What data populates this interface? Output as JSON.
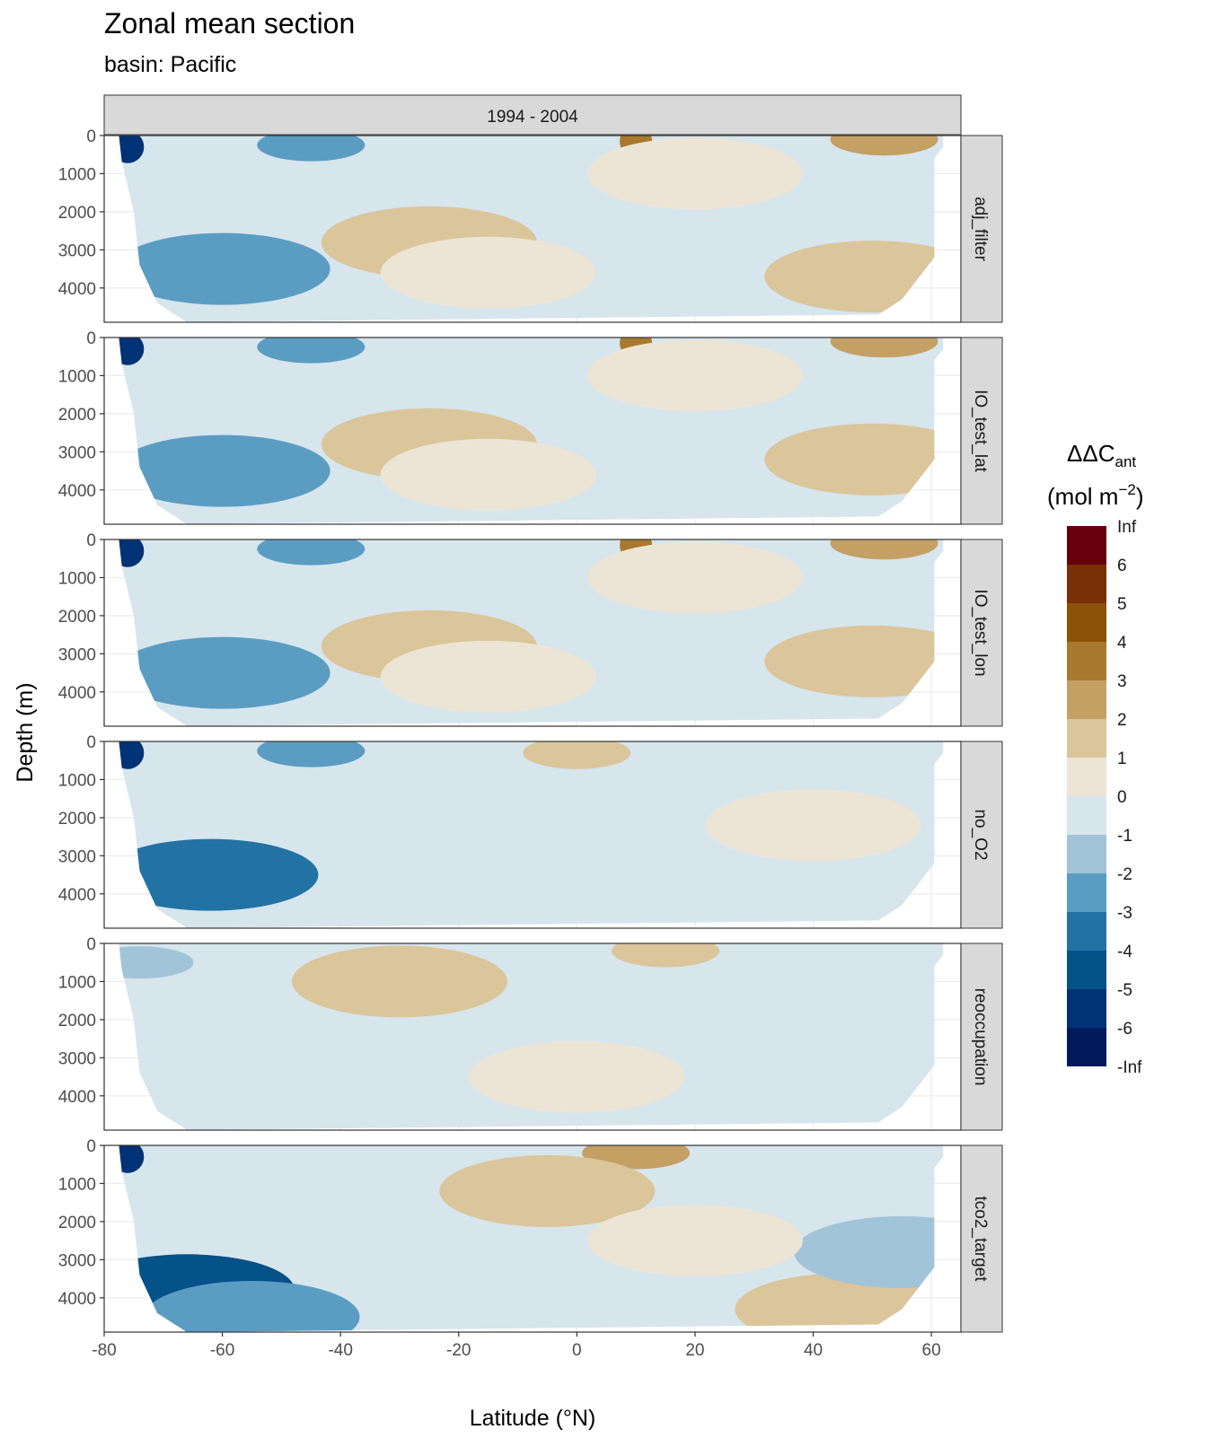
{
  "chart_data": {
    "type": "heatmap",
    "title": "Zonal mean section",
    "subtitle": "basin: Pacific",
    "xlabel": "Latitude (°N)",
    "ylabel": "Depth (m)",
    "xlim": [
      -80,
      65
    ],
    "ylim": [
      0,
      4900
    ],
    "y_reversed": true,
    "x_ticks": [
      -80,
      -60,
      -40,
      -20,
      0,
      20,
      40,
      60
    ],
    "y_ticks": [
      0,
      1000,
      2000,
      3000,
      4000
    ],
    "column_strip": "1994 - 2004",
    "legend": {
      "title": "ΔΔC",
      "title_subscript": "ant",
      "unit_prefix": "(mol m",
      "unit_superscript": "−2",
      "unit_suffix": ")",
      "placement": "right",
      "breaks": [
        "Inf",
        "6",
        "5",
        "4",
        "3",
        "2",
        "1",
        "0",
        "-1",
        "-2",
        "-3",
        "-4",
        "-5",
        "-6",
        "-Inf"
      ],
      "colors": [
        "#67000d",
        "#7a3006",
        "#8c5208",
        "#a8792e",
        "#c4a065",
        "#dbc59b",
        "#ece5d6",
        "#d7e5ed",
        "#a1c4d8",
        "#5b9dc2",
        "#2372a4",
        "#055189",
        "#003276",
        "#001a5a"
      ]
    },
    "panels": [
      {
        "label": "adj_filter",
        "south_max": 4900,
        "north_max": 4700,
        "features": [
          {
            "x": -76,
            "y": 300,
            "value": -5.5
          },
          {
            "x": -45,
            "y": 250,
            "value": -2.5
          },
          {
            "x": -60,
            "y": 3500,
            "value": -2
          },
          {
            "x": 10,
            "y": 150,
            "value": 3.5
          },
          {
            "x": 52,
            "y": 100,
            "value": 2.5
          },
          {
            "x": -25,
            "y": 2800,
            "value": 1.5
          },
          {
            "x": -15,
            "y": 3600,
            "value": 0.5
          },
          {
            "x": 50,
            "y": 3700,
            "value": 1.5
          },
          {
            "x": 20,
            "y": 1000,
            "value": 0.5
          }
        ]
      },
      {
        "label": "IO_test_lat",
        "south_max": 4900,
        "north_max": 4700,
        "features": [
          {
            "x": -76,
            "y": 300,
            "value": -5.5
          },
          {
            "x": -45,
            "y": 250,
            "value": -2.5
          },
          {
            "x": -60,
            "y": 3500,
            "value": -2
          },
          {
            "x": 10,
            "y": 150,
            "value": 3.5
          },
          {
            "x": 52,
            "y": 100,
            "value": 2.5
          },
          {
            "x": -25,
            "y": 2800,
            "value": 1.5
          },
          {
            "x": -15,
            "y": 3600,
            "value": 0.5
          },
          {
            "x": 50,
            "y": 3200,
            "value": 1.5
          },
          {
            "x": 20,
            "y": 1000,
            "value": 0.5
          }
        ]
      },
      {
        "label": "IO_test_lon",
        "south_max": 4900,
        "north_max": 4700,
        "features": [
          {
            "x": -76,
            "y": 300,
            "value": -5.5
          },
          {
            "x": -45,
            "y": 250,
            "value": -2.5
          },
          {
            "x": -60,
            "y": 3500,
            "value": -2
          },
          {
            "x": 10,
            "y": 150,
            "value": 3.5
          },
          {
            "x": 52,
            "y": 100,
            "value": 2.5
          },
          {
            "x": -25,
            "y": 2800,
            "value": 1.5
          },
          {
            "x": -15,
            "y": 3600,
            "value": 0.5
          },
          {
            "x": 50,
            "y": 3200,
            "value": 1.5
          },
          {
            "x": 20,
            "y": 1000,
            "value": 0.5
          }
        ]
      },
      {
        "label": "no_O2",
        "south_max": 4900,
        "north_max": 4700,
        "features": [
          {
            "x": -76,
            "y": 300,
            "value": -5.5
          },
          {
            "x": -45,
            "y": 250,
            "value": -2.5
          },
          {
            "x": -62,
            "y": 3500,
            "value": -3.5
          },
          {
            "x": 0,
            "y": 300,
            "value": 1.5
          },
          {
            "x": 40,
            "y": 2200,
            "value": 0.5
          },
          {
            "x": -20,
            "y": 3500,
            "value": -0.5
          }
        ]
      },
      {
        "label": "reoccupation",
        "south_max": 4900,
        "north_max": 4700,
        "features": [
          {
            "x": -74,
            "y": 500,
            "value": -1.5
          },
          {
            "x": -30,
            "y": 1000,
            "value": 1.5
          },
          {
            "x": 15,
            "y": 200,
            "value": 2
          },
          {
            "x": 0,
            "y": 3500,
            "value": 0.5
          },
          {
            "x": -60,
            "y": 2500,
            "value": -0.5
          }
        ]
      },
      {
        "label": "tco2_target",
        "south_max": 4900,
        "north_max": 4700,
        "features": [
          {
            "x": -76,
            "y": 300,
            "value": -5.5
          },
          {
            "x": -66,
            "y": 3800,
            "value": -4.5
          },
          {
            "x": -55,
            "y": 4500,
            "value": -2.5
          },
          {
            "x": 10,
            "y": 200,
            "value": 3
          },
          {
            "x": -5,
            "y": 1200,
            "value": 1.5
          },
          {
            "x": 45,
            "y": 4300,
            "value": 1.5
          },
          {
            "x": 55,
            "y": 2800,
            "value": -1.5
          },
          {
            "x": 20,
            "y": 2500,
            "value": 0.5
          }
        ]
      }
    ]
  }
}
